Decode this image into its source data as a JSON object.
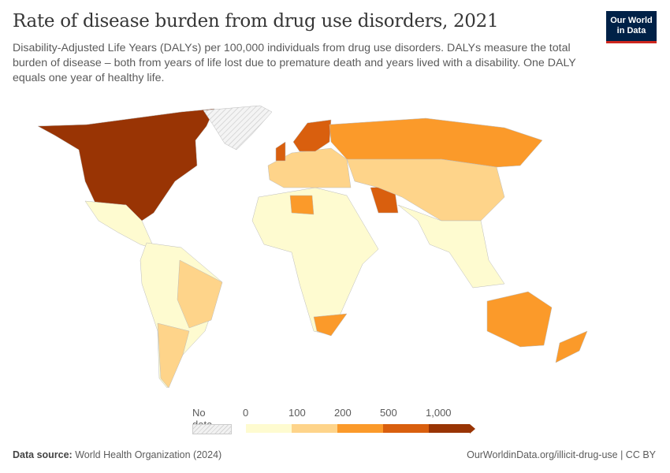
{
  "header": {
    "title": "Rate of disease burden from drug use disorders, 2021",
    "subtitle": "Disability-Adjusted Life Years (DALYs) per 100,000 individuals from drug use disorders. DALYs measure the total burden of disease – both from years of life lost due to premature death and years lived with a disability. One DALY equals one year of healthy life.",
    "logo": [
      "Our World",
      "in Data"
    ]
  },
  "legend": {
    "no_data_label": "No data",
    "bins": [
      {
        "label": "0",
        "color": "#fefbd0"
      },
      {
        "label": "100",
        "color": "#fed48a"
      },
      {
        "label": "200",
        "color": "#fb9a2a"
      },
      {
        "label": "500",
        "color": "#d95f0e"
      },
      {
        "label": "1,000",
        "color": "#993404"
      }
    ]
  },
  "map_regions": [
    {
      "name": "North America (US, Canada)",
      "bin": 4
    },
    {
      "name": "Greenland",
      "bin": "no-data"
    },
    {
      "name": "Mexico & Central America",
      "bin": 0
    },
    {
      "name": "South America",
      "bin": 0
    },
    {
      "name": "Brazil",
      "bin": 1
    },
    {
      "name": "Argentina & Chile",
      "bin": 1
    },
    {
      "name": "Africa",
      "bin": 0
    },
    {
      "name": "Libya",
      "bin": 2
    },
    {
      "name": "South Africa",
      "bin": 2
    },
    {
      "name": "Europe",
      "bin": 1
    },
    {
      "name": "UK & Scandinavia",
      "bin": 3
    },
    {
      "name": "Russia",
      "bin": 2
    },
    {
      "name": "Iran",
      "bin": 3
    },
    {
      "name": "China & Central Asia",
      "bin": 1
    },
    {
      "name": "India & Southeast Asia",
      "bin": 0
    },
    {
      "name": "Australia",
      "bin": 2
    },
    {
      "name": "New Zealand",
      "bin": 2
    }
  ],
  "footer": {
    "source_label": "Data source:",
    "source": "World Health Organization (2024)",
    "url": "OurWorldinData.org/illicit-drug-use | CC BY"
  }
}
